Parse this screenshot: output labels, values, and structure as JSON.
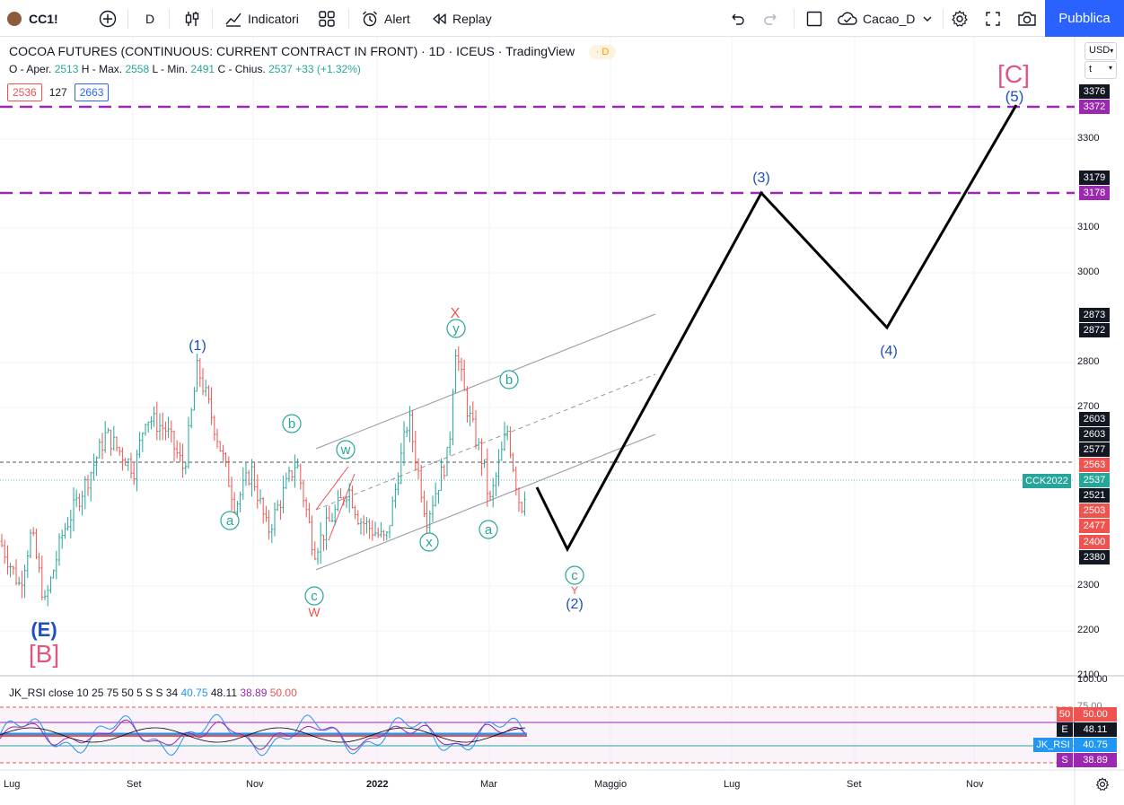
{
  "toolbar": {
    "symbol": "CC1!",
    "interval": "D",
    "indicators_label": "Indicatori",
    "alert_label": "Alert",
    "replay_label": "Replay",
    "layout_name": "Cacao_D",
    "publish_label": "Pubblica"
  },
  "legend": {
    "title": "COCOA FUTURES (CONTINUOUS: CURRENT CONTRACT IN FRONT)",
    "interval": "1D",
    "exchange": "ICEUS",
    "source": "TradingView",
    "badge": "D",
    "ohlc": {
      "open_label": "O - Aper.",
      "open": "2513",
      "high_label": "H - Max.",
      "high": "2558",
      "low_label": "L - Min.",
      "low": "2491",
      "close_label": "C - Chius.",
      "close": "2537",
      "change": "+33 (+1.32%)"
    },
    "box_left": "2536",
    "box_mid": "127",
    "box_right": "2663"
  },
  "currency": "USD",
  "scale_mode": "t",
  "price_axis": {
    "ticks": [
      "3300",
      "3100",
      "3000",
      "2800",
      "2700",
      "2300",
      "2200",
      "2100"
    ],
    "badges": [
      {
        "value": "3376",
        "color": "#131722"
      },
      {
        "value": "3372",
        "color": "#9c27b0"
      },
      {
        "value": "3179",
        "color": "#131722"
      },
      {
        "value": "3178",
        "color": "#9c27b0"
      },
      {
        "value": "2873",
        "color": "#131722"
      },
      {
        "value": "2872",
        "color": "#131722"
      },
      {
        "value": "2603",
        "color": "#131722"
      },
      {
        "value": "2603",
        "color": "#131722"
      },
      {
        "value": "2577",
        "color": "#131722"
      },
      {
        "value": "2563",
        "color": "#ef5350"
      },
      {
        "value": "2537",
        "color": "#26a69a"
      },
      {
        "value": "2521",
        "color": "#131722"
      },
      {
        "value": "2503",
        "color": "#ef5350"
      },
      {
        "value": "2477",
        "color": "#ef5350"
      },
      {
        "value": "2400",
        "color": "#ef5350"
      },
      {
        "value": "2380",
        "color": "#131722"
      }
    ],
    "contract_label": "CCK2022"
  },
  "time_axis": [
    "Lug",
    "Set",
    "Nov",
    "2022",
    "Mar",
    "Maggio",
    "Lug",
    "Set",
    "Nov"
  ],
  "waves": {
    "w1": "(1)",
    "w2": "(2)",
    "w3": "(3)",
    "w4": "(4)",
    "w5": "(5)",
    "wE": "(E)",
    "wB": "[B]",
    "wC": "[C]",
    "a1": "a",
    "b1": "b",
    "c1": "c",
    "w_low": "w",
    "wx": "x",
    "wy": "y",
    "a2": "a",
    "b2": "b",
    "c2": "c",
    "X": "X",
    "W": "W",
    "Y": "Y",
    "ww": "w"
  },
  "rsi": {
    "name": "JK_RSI",
    "params": "close 10 25 75 50 5 S S 34",
    "v1": "40.75",
    "v2": "48.11",
    "v3": "38.89",
    "v4": "50.00",
    "axis_top": "100.00",
    "axis_75": "75.00",
    "badges": [
      {
        "tag": "50",
        "value": "50.00",
        "color": "#ef5350"
      },
      {
        "tag": "E",
        "value": "48.11",
        "color": "#131722"
      },
      {
        "tag": "JK_RSI",
        "value": "40.75",
        "color": "#2196f3"
      },
      {
        "tag": "S",
        "value": "38.89",
        "color": "#9c27b0"
      }
    ]
  },
  "colors": {
    "up": "#26a69a",
    "down": "#ef5350",
    "accent": "#2962ff",
    "wave_blue": "#1e4fc2",
    "wave_pink": "#e0567f",
    "level": "#9c27b0"
  }
}
